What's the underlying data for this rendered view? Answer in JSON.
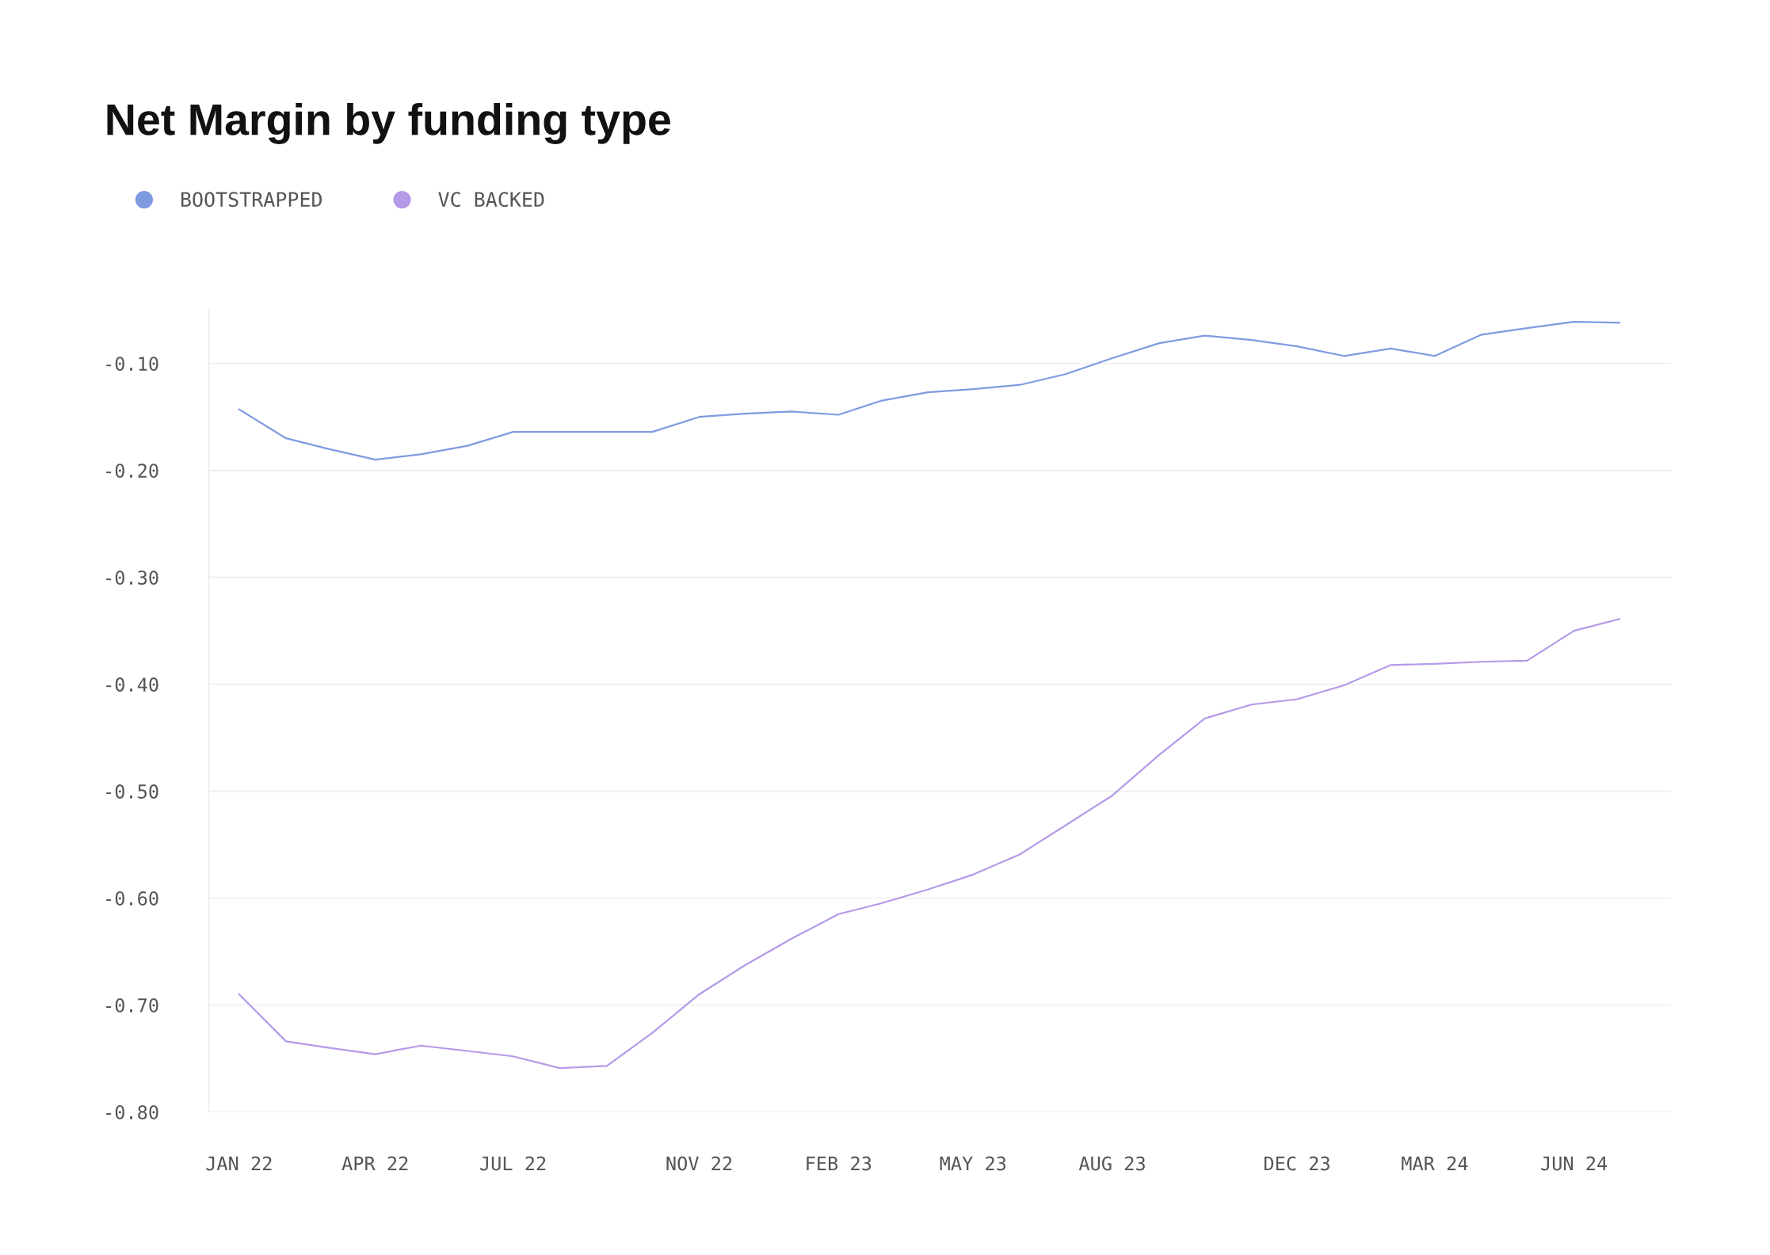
{
  "chart_data": {
    "type": "line",
    "title": "Net Margin by funding type",
    "x": [
      "2022-01",
      "2022-02",
      "2022-03",
      "2022-04",
      "2022-05",
      "2022-06",
      "2022-07",
      "2022-08",
      "2022-09",
      "2022-10",
      "2022-11",
      "2022-12",
      "2023-01",
      "2023-02",
      "2023-03",
      "2023-04",
      "2023-05",
      "2023-06",
      "2023-07",
      "2023-08",
      "2023-09",
      "2023-10",
      "2023-11",
      "2023-12",
      "2024-01",
      "2024-02",
      "2024-03",
      "2024-04",
      "2024-05",
      "2024-06",
      "2024-07"
    ],
    "series": [
      {
        "name": "BOOTSTRAPPED",
        "color": "#7f9be0",
        "values": [
          -0.143,
          -0.17,
          -0.18,
          -0.19,
          -0.185,
          -0.177,
          -0.164,
          -0.164,
          -0.164,
          -0.164,
          -0.15,
          -0.147,
          -0.145,
          -0.148,
          -0.135,
          -0.127,
          -0.124,
          -0.12,
          -0.11,
          -0.095,
          -0.081,
          -0.074,
          -0.078,
          -0.084,
          -0.093,
          -0.086,
          -0.093,
          -0.073,
          -0.067,
          -0.061,
          -0.062
        ]
      },
      {
        "name": "VC BACKED",
        "color": "#b59ae8",
        "values": [
          -0.69,
          -0.734,
          -0.74,
          -0.746,
          -0.738,
          -0.743,
          -0.748,
          -0.759,
          -0.757,
          -0.726,
          -0.69,
          -0.663,
          -0.638,
          -0.615,
          -0.605,
          -0.592,
          -0.578,
          -0.559,
          -0.532,
          -0.504,
          -0.466,
          -0.432,
          -0.419,
          -0.414,
          -0.401,
          -0.382,
          -0.381,
          -0.379,
          -0.378,
          -0.35,
          -0.339
        ]
      }
    ],
    "xlim": [
      "2021-12-12",
      "2024-08-04"
    ],
    "xticks": [
      {
        "value": "2022-01",
        "label": "JAN 22"
      },
      {
        "value": "2022-04",
        "label": "APR 22"
      },
      {
        "value": "2022-07",
        "label": "JUL 22"
      },
      {
        "value": "2022-11",
        "label": "NOV 22"
      },
      {
        "value": "2023-02",
        "label": "FEB 23"
      },
      {
        "value": "2023-05",
        "label": "MAY 23"
      },
      {
        "value": "2023-08",
        "label": "AUG 23"
      },
      {
        "value": "2023-12",
        "label": "DEC 23"
      },
      {
        "value": "2024-03",
        "label": "MAR 24"
      },
      {
        "value": "2024-06",
        "label": "JUN 24"
      }
    ],
    "ylim": [
      -0.8,
      -0.05
    ],
    "yticks": [
      {
        "value": -0.1,
        "label": "-0.10"
      },
      {
        "value": -0.2,
        "label": "-0.20"
      },
      {
        "value": -0.3,
        "label": "-0.30"
      },
      {
        "value": -0.4,
        "label": "-0.40"
      },
      {
        "value": -0.5,
        "label": "-0.50"
      },
      {
        "value": -0.6,
        "label": "-0.60"
      },
      {
        "value": -0.7,
        "label": "-0.70"
      },
      {
        "value": -0.8,
        "label": "-0.80"
      }
    ],
    "grid": "y",
    "legend": "top left",
    "marker": "none",
    "line_style": "solid"
  }
}
